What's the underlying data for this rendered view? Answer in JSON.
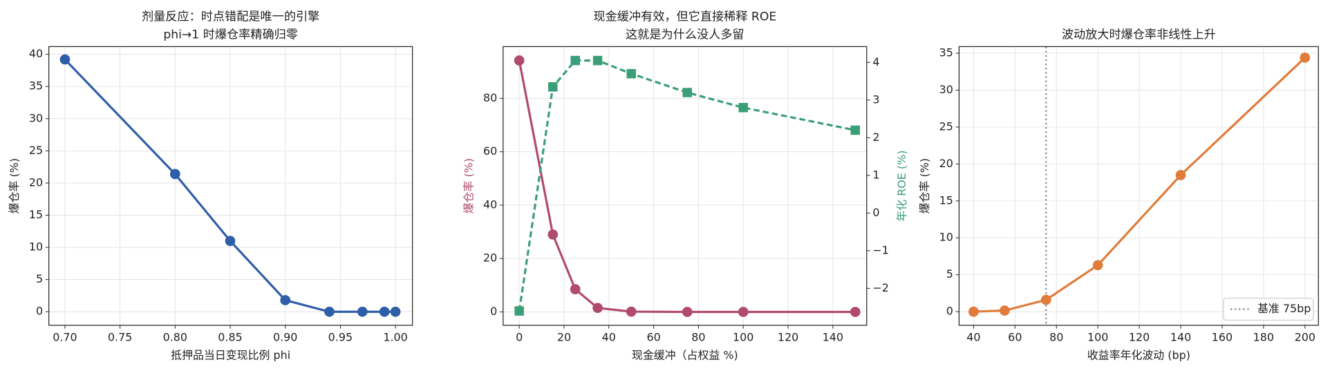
{
  "chart_data": [
    {
      "type": "line",
      "title": "剂量反应：时点错配是唯一的引擎",
      "subtitle": "phi→1 时爆仓率精确归零",
      "xlabel": "抵押品当日变现比例 phi",
      "ylabel": "爆仓率 (%)",
      "x": [
        0.7,
        0.8,
        0.85,
        0.9,
        0.94,
        0.97,
        0.99,
        1.0
      ],
      "series": [
        {
          "color": "#2e5ea8",
          "marker": "circle",
          "dash": false,
          "values": [
            39.2,
            21.4,
            11.0,
            1.8,
            0,
            0,
            0,
            0
          ]
        }
      ],
      "xlim": [
        0.6854,
        1.0154
      ],
      "xticks": [
        {
          "value": 0.7,
          "label": "0.70"
        },
        0.75,
        {
          "value": 0.8,
          "label": "0.80"
        },
        0.85,
        {
          "value": 0.9,
          "label": "0.90"
        },
        0.95,
        {
          "value": 1.0,
          "label": "1.00"
        }
      ],
      "ylim": [
        -2.1,
        41.2
      ],
      "yticks": [
        0,
        5,
        10,
        15,
        20,
        25,
        30,
        35,
        40
      ],
      "grid": true
    },
    {
      "type": "line",
      "title": "现金缓冲有效，但它直接稀释 ROE",
      "subtitle": "这就是为什么没人多留",
      "xlabel": "现金缓冲（占权益 %)",
      "ylabel": "爆仓率 (%)",
      "ylabel_color": "#b04a6e",
      "y2label": "年化 ROE (%)",
      "y2label_color": "#3a9e78",
      "x": [
        0,
        15,
        25,
        35,
        50,
        75,
        100,
        150
      ],
      "series": [
        {
          "color": "#b04a6e",
          "marker": "circle",
          "dash": false,
          "values": [
            94.2,
            29,
            8.5,
            1.5,
            0.1,
            0,
            0,
            0
          ]
        },
        {
          "color": "#3a9e78",
          "marker": "square",
          "dash": true,
          "axis": "y2",
          "values": [
            -2.6,
            3.35,
            4.05,
            4.05,
            3.7,
            3.2,
            2.8,
            2.2
          ]
        }
      ],
      "xlim": [
        -7.2,
        155.1
      ],
      "xticks": [
        0,
        20,
        40,
        60,
        80,
        100,
        120,
        140
      ],
      "ylim": [
        -5,
        99.4
      ],
      "yticks": [
        0,
        20,
        40,
        60,
        80
      ],
      "y2lim": [
        -2.98,
        4.42
      ],
      "y2ticks": [
        {
          "value": -2,
          "label": "−2"
        },
        {
          "value": -1,
          "label": "−1"
        },
        0,
        1,
        2,
        3,
        4
      ],
      "grid": true
    },
    {
      "type": "line",
      "title": "波动放大时爆仓率非线性上升",
      "xlabel": "收益率年化波动 (bp)",
      "ylabel": "爆仓率 (%)",
      "x": [
        40,
        55,
        75,
        100,
        140,
        200
      ],
      "series": [
        {
          "color": "#e07b3c",
          "marker": "circle",
          "dash": false,
          "values": [
            0,
            0.15,
            1.6,
            6.3,
            18.5,
            34.4
          ]
        }
      ],
      "vlines": [
        {
          "x": 75,
          "name": "基准 75bp",
          "color": "#9097a8"
        }
      ],
      "legend": "lower right",
      "xlim": [
        33,
        206.5
      ],
      "xticks": [
        40,
        60,
        80,
        100,
        120,
        140,
        160,
        180,
        200
      ],
      "ylim": [
        -1.84,
        35.9
      ],
      "yticks": [
        0,
        5,
        10,
        15,
        20,
        25,
        30,
        35
      ],
      "grid": true
    }
  ]
}
